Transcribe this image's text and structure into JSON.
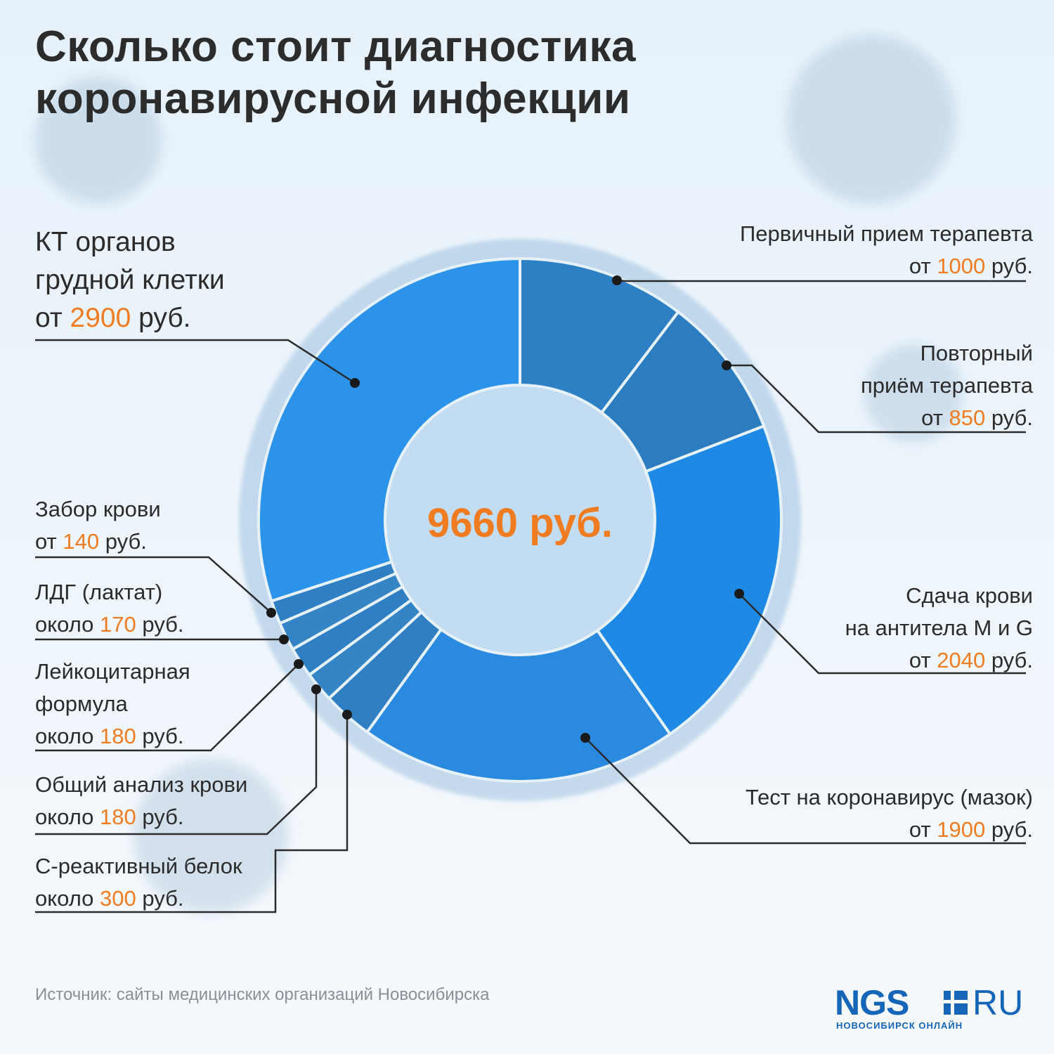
{
  "title": {
    "line1": "Сколько стоит диагностика",
    "line2": "коронавирусной инфекции"
  },
  "chart_data": {
    "type": "pie",
    "style": "donut",
    "total_label": "9660 руб.",
    "slices": [
      {
        "label_lines": [
          "Первичный прием терапевта"
        ],
        "prefix": "от",
        "value": 1000,
        "value_text": "1000",
        "unit": "руб.",
        "color": "#2e80c5"
      },
      {
        "label_lines": [
          "Повторный",
          "приём терапевта"
        ],
        "prefix": "от",
        "value": 850,
        "value_text": "850",
        "unit": "руб.",
        "color": "#2c7cc0"
      },
      {
        "label_lines": [
          "Сдача крови",
          "на антитела M и G"
        ],
        "prefix": "от",
        "value": 2040,
        "value_text": "2040",
        "unit": "руб.",
        "color": "#1f8ae6"
      },
      {
        "label_lines": [
          "Тест на коронавирус (мазок)"
        ],
        "prefix": "от",
        "value": 1900,
        "value_text": "1900",
        "unit": "руб.",
        "color": "#2a8ae0"
      },
      {
        "label_lines": [
          "С-реактивный белок"
        ],
        "prefix": "около",
        "value": 300,
        "value_text": "300",
        "unit": "руб.",
        "color": "#2f7fc2"
      },
      {
        "label_lines": [
          "Общий анализ крови"
        ],
        "prefix": "около",
        "value": 180,
        "value_text": "180",
        "unit": "руб.",
        "color": "#3584c6"
      },
      {
        "label_lines": [
          "Лейкоцитарная",
          "формула"
        ],
        "prefix": "около",
        "value": 180,
        "value_text": "180",
        "unit": "руб.",
        "color": "#2e7fc3"
      },
      {
        "label_lines": [
          "ЛДГ (лактат)"
        ],
        "prefix": "около",
        "value": 170,
        "value_text": "170",
        "unit": "руб.",
        "color": "#3584c6"
      },
      {
        "label_lines": [
          "Забор крови"
        ],
        "prefix": "от",
        "value": 140,
        "value_text": "140",
        "unit": "руб.",
        "color": "#2e7fc3"
      },
      {
        "label_lines": [
          "КТ органов",
          "грудной клетки"
        ],
        "prefix": "от",
        "value": 2900,
        "value_text": "2900",
        "unit": "руб.",
        "color": "#2b93ea"
      }
    ]
  },
  "source": "Источник: сайты медицинских организаций Новосибирска",
  "logo": {
    "brand": "NGS",
    "tld": "RU",
    "subtitle": "НОВОСИБИРСК ОНЛАЙН"
  }
}
